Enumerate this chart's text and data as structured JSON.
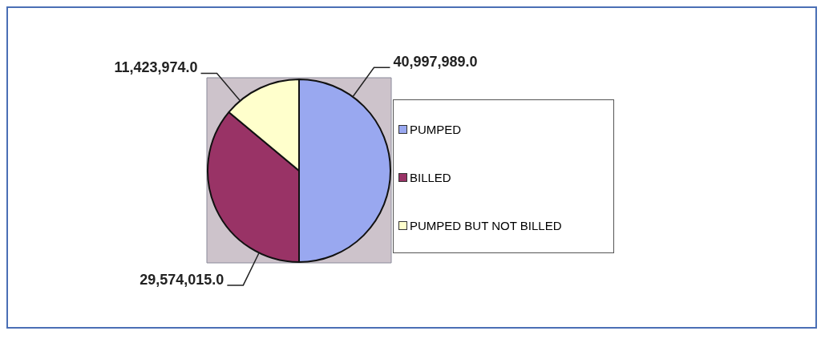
{
  "chart_data": {
    "type": "pie",
    "categories": [
      "PUMPED",
      "BILLED",
      "PUMPED BUT NOT BILLED"
    ],
    "values": [
      40997989,
      29574015,
      11423974
    ],
    "value_labels": [
      "40,997,989.0",
      "29,574,015.0",
      "11,423,974.0"
    ],
    "colors": [
      "#99a8f0",
      "#993366",
      "#ffffcc"
    ],
    "legend": "right"
  }
}
